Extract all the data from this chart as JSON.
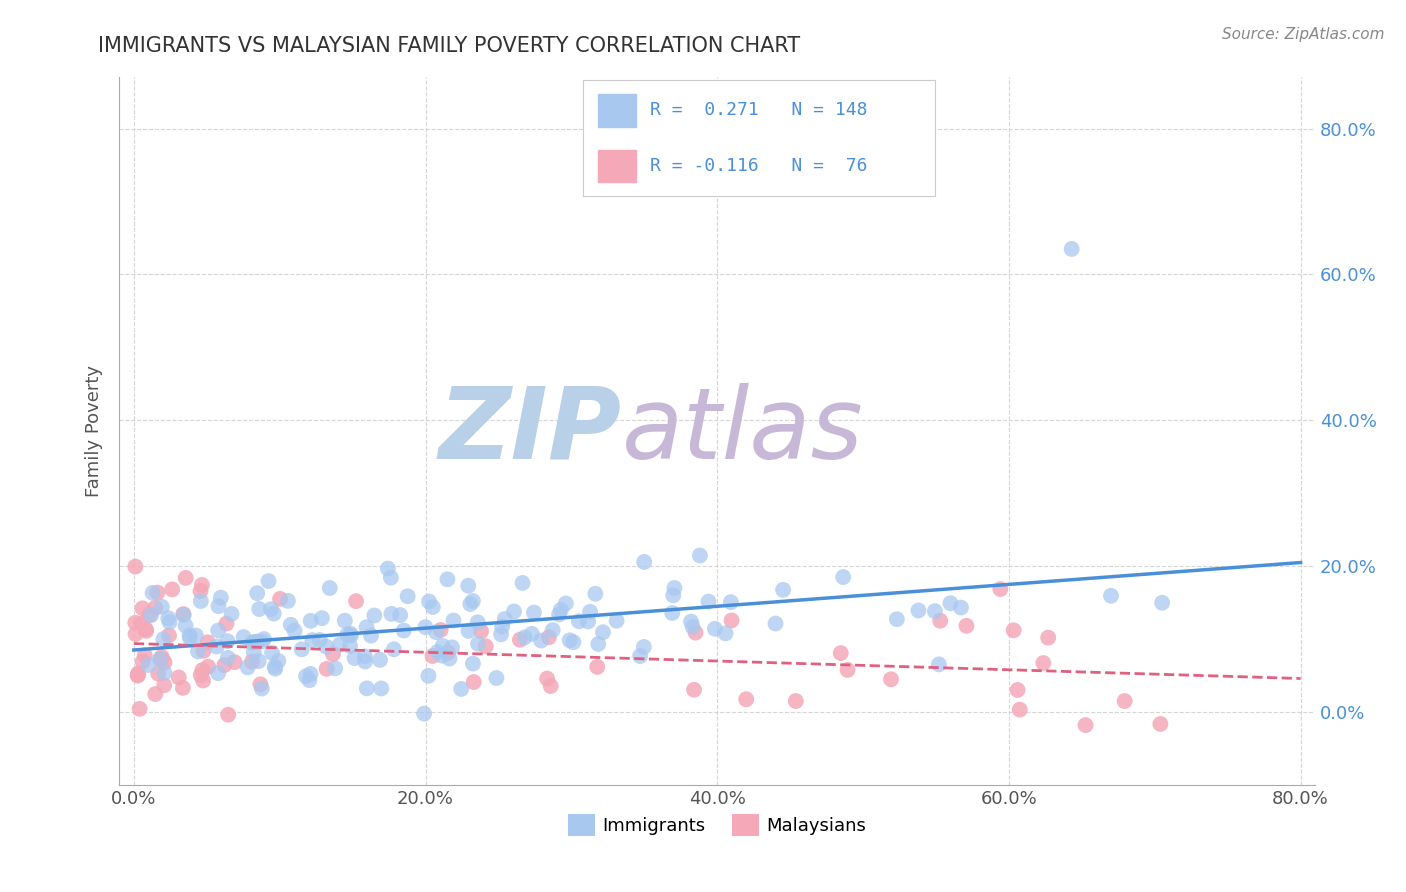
{
  "title": "IMMIGRANTS VS MALAYSIAN FAMILY POVERTY CORRELATION CHART",
  "source_text": "Source: ZipAtlas.com",
  "ylabel": "Family Poverty",
  "xlim": [
    -0.01,
    0.81
  ],
  "ylim": [
    -0.1,
    0.87
  ],
  "xtick_labels": [
    "0.0%",
    "20.0%",
    "40.0%",
    "60.0%",
    "80.0%"
  ],
  "xtick_values": [
    0.0,
    0.2,
    0.4,
    0.6,
    0.8
  ],
  "ytick_labels": [
    "0.0%",
    "20.0%",
    "40.0%",
    "60.0%",
    "80.0%"
  ],
  "ytick_values": [
    0.0,
    0.2,
    0.4,
    0.6,
    0.8
  ],
  "R_immigrants": 0.271,
  "N_immigrants": 148,
  "R_malaysians": -0.116,
  "N_malaysians": 76,
  "blue_scatter_color": "#a8c8f0",
  "pink_scatter_color": "#f4a8b8",
  "blue_line_color": "#4a90d9",
  "pink_line_color": "#e06080",
  "legend_text_color": "#4a90d9",
  "title_color": "#333333",
  "watermark_zip_color": "#b8d0e8",
  "watermark_atlas_color": "#c8b8d8",
  "background_color": "#ffffff",
  "grid_color": "#cccccc",
  "seed": 42
}
